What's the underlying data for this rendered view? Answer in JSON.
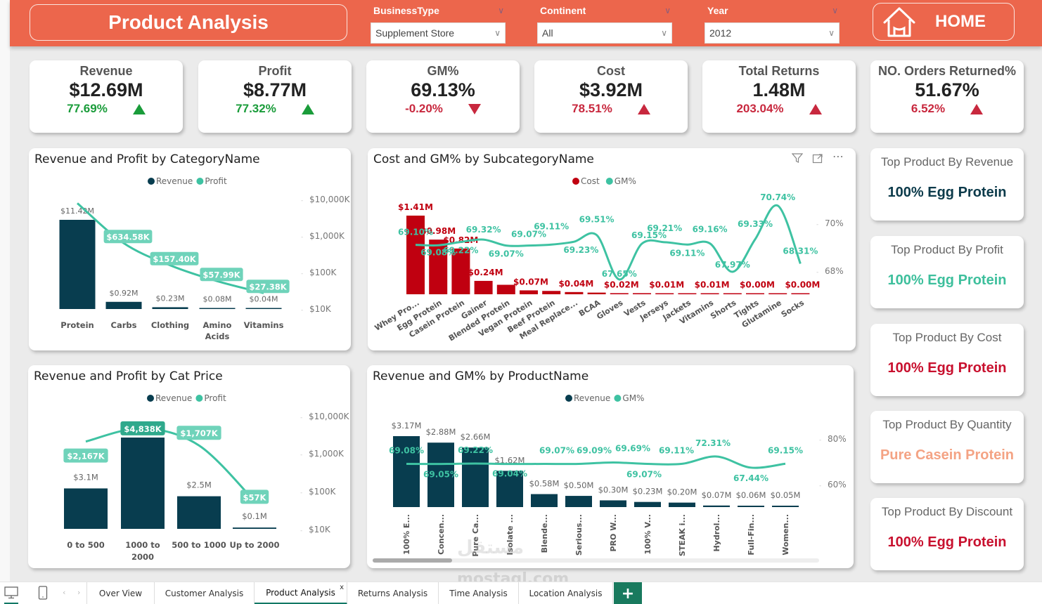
{
  "header": {
    "title": "Product Analysis",
    "home_label": "HOME",
    "slicers": [
      {
        "label": "BusinessType",
        "value": "Supplement Store"
      },
      {
        "label": "Continent",
        "value": "All"
      },
      {
        "label": "Year",
        "value": "2012"
      }
    ]
  },
  "kpis": [
    {
      "title": "Revenue",
      "value": "$12.69M",
      "change": "77.69%",
      "direction": "up",
      "color": "#1a9c3a"
    },
    {
      "title": "Profit",
      "value": "$8.77M",
      "change": "77.32%",
      "direction": "up",
      "color": "#1a9c3a"
    },
    {
      "title": "GM%",
      "value": "69.13%",
      "change": "-0.20%",
      "direction": "down",
      "color": "#c8283e"
    },
    {
      "title": "Cost",
      "value": "$3.92M",
      "change": "78.51%",
      "direction": "up",
      "color": "#c8283e"
    },
    {
      "title": "Total Returns",
      "value": "1.48M",
      "change": "203.04%",
      "direction": "up",
      "color": "#c8283e"
    },
    {
      "title": "NO. Orders Returned%",
      "value": "51.67%",
      "change": "6.52%",
      "direction": "up",
      "color": "#c8283e"
    }
  ],
  "top_products": [
    {
      "title": "Top Product By Revenue",
      "value": "100% Egg Protein",
      "color": "#0b3a4a"
    },
    {
      "title": "Top Product By Profit",
      "value": "100% Egg Protein",
      "color": "#3dbf9c"
    },
    {
      "title": "Top Product By Cost",
      "value": "100% Egg Protein",
      "color": "#c8102e"
    },
    {
      "title": "Top Product By Quantity",
      "value": "Pure Casein Protein",
      "color": "#f4a384"
    },
    {
      "title": "Top Product By Discount",
      "value": "100% Egg Protein",
      "color": "#c8102e"
    }
  ],
  "colors": {
    "accent": "#ec664c",
    "revenue": "#083d4f",
    "profit": "#3ec2a2",
    "cost": "#c00010",
    "gm": "#3ec2a2"
  },
  "chart_data": [
    {
      "id": "cat",
      "type": "bar",
      "title": "Revenue and Profit by CategoryName",
      "legend": [
        "Revenue",
        "Profit"
      ],
      "legend_position": "top-center",
      "categories": [
        "Protein",
        "Carbs",
        "Clothing",
        "Amino Acids",
        "Vitamins"
      ],
      "series": [
        {
          "name": "Revenue",
          "type": "bar",
          "values": [
            11.42,
            0.92,
            0.23,
            0.08,
            0.04
          ],
          "labels": [
            "$11.42M",
            "$0.92M",
            "$0.23M",
            "$0.08M",
            "$0.04M"
          ]
        },
        {
          "name": "Profit",
          "type": "line",
          "values": [
            7890,
            634.58,
            157.4,
            57.99,
            27.38
          ],
          "labels": [
            "",
            "$634.58K",
            "$157.40K",
            "$57.99K",
            "$27.38K"
          ]
        }
      ],
      "y2_ticks": [
        "$10,000K",
        "$1,000K",
        "$100K",
        "$10K"
      ],
      "y2_scale": "log"
    },
    {
      "id": "sub",
      "type": "bar",
      "title": "Cost and GM% by SubcategoryName",
      "legend": [
        "Cost",
        "GM%"
      ],
      "legend_position": "top-center",
      "categories": [
        "Whey Pro...",
        "Egg Protein",
        "Casein Protein",
        "Gainer",
        "Blended Protein",
        "Vegan Protein",
        "Beef Protein",
        "Meal Replace...",
        "BCAA",
        "Gloves",
        "Vests",
        "Jerseys",
        "Jackets",
        "Vitamins",
        "Shorts",
        "Tights",
        "Glutamine",
        "Socks"
      ],
      "series": [
        {
          "name": "Cost",
          "type": "bar",
          "values": [
            1.41,
            0.98,
            0.82,
            0.24,
            0.17,
            0.07,
            0.06,
            0.04,
            0.03,
            0.02,
            0.02,
            0.01,
            0.01,
            0.01,
            0.01,
            0.0,
            0.0,
            0.0
          ],
          "labels": [
            "$1.41M",
            "$0.98M",
            "$0.82M",
            "$0.24M",
            "",
            "$0.07M",
            "",
            "$0.04M",
            "",
            "$0.02M",
            "",
            "$0.01M",
            "",
            "$0.01M",
            "",
            "$0.00M",
            "",
            "$0.00M"
          ]
        },
        {
          "name": "GM%",
          "type": "line",
          "values": [
            69.1,
            69.08,
            69.22,
            69.32,
            69.07,
            69.07,
            69.11,
            69.23,
            69.51,
            67.65,
            69.15,
            69.21,
            69.11,
            69.16,
            67.97,
            69.33,
            70.74,
            68.31
          ],
          "labels": [
            "69.10%",
            "69.08%",
            "69.22%",
            "69.32%",
            "69.07%",
            "69.07%",
            "69.11%",
            "69.23%",
            "69.51%",
            "67.65%",
            "69.15%",
            "69.21%",
            "69.11%",
            "69.16%",
            "67.97%",
            "69.33%",
            "70.74%",
            "68.31%"
          ]
        }
      ],
      "y2_ticks": [
        "70%",
        "68%"
      ]
    },
    {
      "id": "price",
      "type": "bar",
      "title": "Revenue and Profit by Cat Price",
      "legend": [
        "Revenue",
        "Profit"
      ],
      "legend_position": "top-center",
      "categories": [
        "0 to 500",
        "1000 to 2000",
        "500 to 1000",
        "Up to 2000"
      ],
      "series": [
        {
          "name": "Revenue",
          "type": "bar",
          "values": [
            3.1,
            7.0,
            2.5,
            0.1
          ],
          "labels": [
            "$3.1M",
            "$7.0M",
            "$2.5M",
            "$0.1M"
          ]
        },
        {
          "name": "Profit",
          "type": "line",
          "values": [
            2167,
            4838,
            1707,
            57
          ],
          "labels": [
            "$2,167K",
            "$4,838K",
            "$1,707K",
            "$57K"
          ]
        }
      ],
      "y2_ticks": [
        "$10,000K",
        "$1,000K",
        "$100K",
        "$10K"
      ],
      "y2_scale": "log"
    },
    {
      "id": "prod",
      "type": "bar",
      "title": "Revenue and GM% by ProductName",
      "legend": [
        "Revenue",
        "GM%"
      ],
      "legend_position": "top-center",
      "categories": [
        "100% E...",
        "Concen...",
        "Pure Ca...",
        "Isolate ...",
        "Blende...",
        "Serious...",
        "PRO W...",
        "100% V...",
        "STEAK i...",
        "Hydrol...",
        "Full-Fin...",
        "Women..."
      ],
      "series": [
        {
          "name": "Revenue",
          "type": "bar",
          "values": [
            3.17,
            2.88,
            2.66,
            1.62,
            0.58,
            0.5,
            0.3,
            0.23,
            0.2,
            0.07,
            0.06,
            0.05
          ],
          "labels": [
            "$3.17M",
            "$2.88M",
            "$2.66M",
            "$1.62M",
            "$0.58M",
            "$0.50M",
            "$0.30M",
            "$0.23M",
            "$0.20M",
            "$0.07M",
            "$0.06M",
            "$0.05M"
          ]
        },
        {
          "name": "GM%",
          "type": "line",
          "values": [
            69.08,
            69.05,
            69.22,
            69.04,
            69.07,
            69.09,
            69.69,
            69.07,
            69.11,
            72.31,
            67.44,
            69.15
          ],
          "labels": [
            "69.08%",
            "69.05%",
            "69.22%",
            "69.04%",
            "69.07%",
            "69.09%",
            "69.69%",
            "69.07%",
            "69.11%",
            "72.31%",
            "67.44%",
            "69.15%"
          ]
        }
      ],
      "y2_ticks": [
        "80%",
        "60%"
      ]
    }
  ],
  "tabs": [
    {
      "label": "Over View"
    },
    {
      "label": "Customer Analysis"
    },
    {
      "label": "Product Analysis",
      "active": true
    },
    {
      "label": "Returns Analysis"
    },
    {
      "label": "Time Analysis"
    },
    {
      "label": "Location Analysis"
    }
  ],
  "tab_close": "x",
  "add_tab": "+",
  "watermark": {
    "arabic": "مستقل",
    "latin": "mostaql.com"
  }
}
